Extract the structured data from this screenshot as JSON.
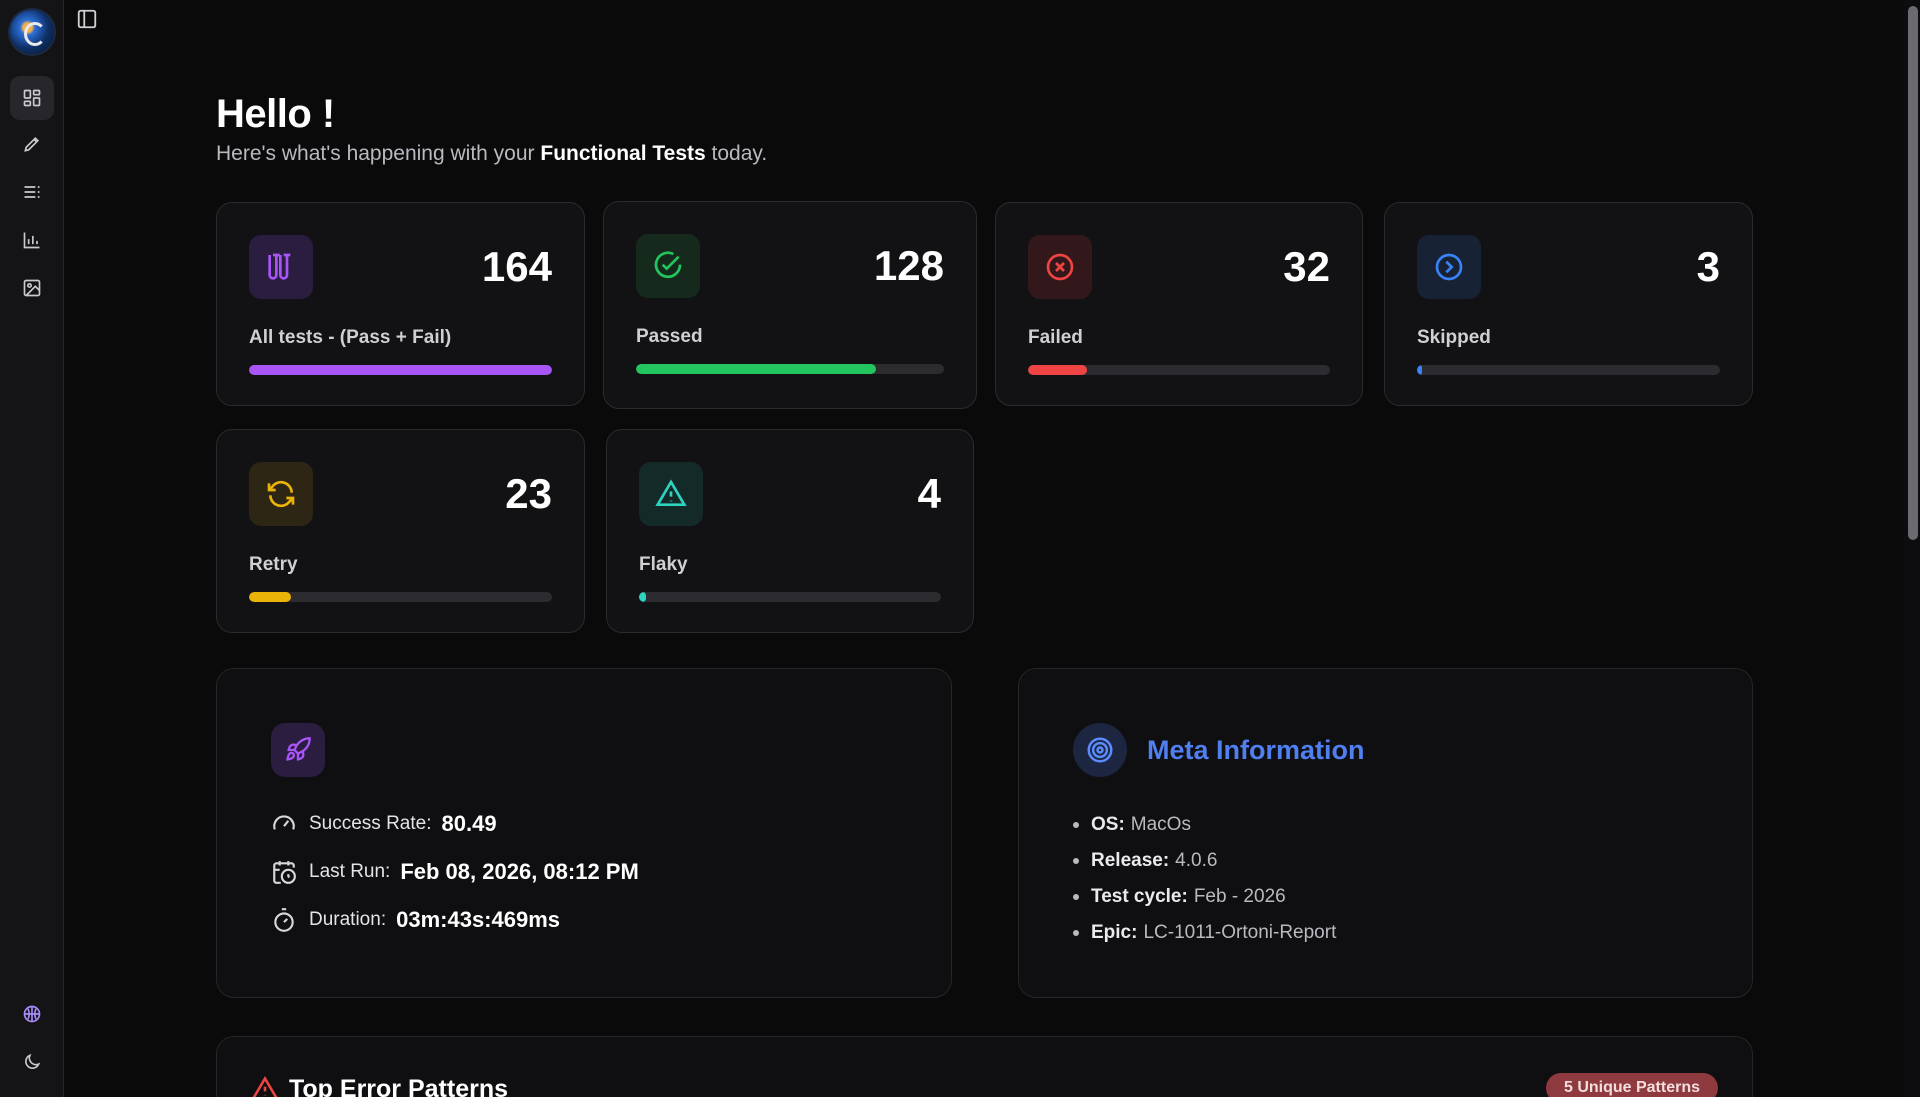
{
  "header": {
    "greeting": "Hello !",
    "subtitle_prefix": "Here's what's happening with your",
    "subtitle_bold": "Functional Tests",
    "subtitle_suffix": "today."
  },
  "sidebar": {
    "items": [
      {
        "icon": "dashboard-icon",
        "active": true
      },
      {
        "icon": "pencil-icon",
        "active": false
      },
      {
        "icon": "list-icon",
        "active": false
      },
      {
        "icon": "bar-chart-icon",
        "active": false
      },
      {
        "icon": "image-icon",
        "active": false
      }
    ],
    "bottom": [
      "brain-icon",
      "moon-icon"
    ]
  },
  "stats": [
    {
      "key": "all",
      "value": "164",
      "label": "All tests - (Pass + Fail)",
      "color": "#a855f7",
      "bg": "#2a1d3f",
      "progress": 1.0,
      "icon": "test-tubes-icon"
    },
    {
      "key": "passed",
      "value": "128",
      "label": "Passed",
      "color": "#22c55e",
      "bg": "#16291d",
      "progress": 0.78,
      "icon": "check-circle-icon"
    },
    {
      "key": "failed",
      "value": "32",
      "label": "Failed",
      "color": "#ef4444",
      "bg": "#32181a",
      "progress": 0.195,
      "icon": "x-circle-icon"
    },
    {
      "key": "skipped",
      "value": "3",
      "label": "Skipped",
      "color": "#3b82f6",
      "bg": "#172235",
      "progress": 0.018,
      "icon": "chevron-right-circle-icon"
    },
    {
      "key": "retry",
      "value": "23",
      "label": "Retry",
      "color": "#eab308",
      "bg": "#2e2614",
      "progress": 0.14,
      "icon": "refresh-icon"
    },
    {
      "key": "flaky",
      "value": "4",
      "label": "Flaky",
      "color": "#2dd4bf",
      "bg": "#142a28",
      "progress": 0.024,
      "icon": "warning-triangle-icon"
    }
  ],
  "summary": {
    "success_rate_label": "Success Rate:",
    "success_rate_value": "80.49",
    "last_run_label": "Last Run:",
    "last_run_value": "Feb 08, 2026, 08:12 PM",
    "duration_label": "Duration:",
    "duration_value": "03m:43s:469ms"
  },
  "meta": {
    "title": "Meta Information",
    "items": [
      {
        "key": "OS:",
        "value": "MacOs"
      },
      {
        "key": "Release:",
        "value": "4.0.6"
      },
      {
        "key": "Test cycle:",
        "value": "Feb - 2026"
      },
      {
        "key": "Epic:",
        "value": "LC-1011-Ortoni-Report"
      }
    ]
  },
  "errors": {
    "title": "Top Error Patterns",
    "badge": "5 Unique Patterns"
  }
}
